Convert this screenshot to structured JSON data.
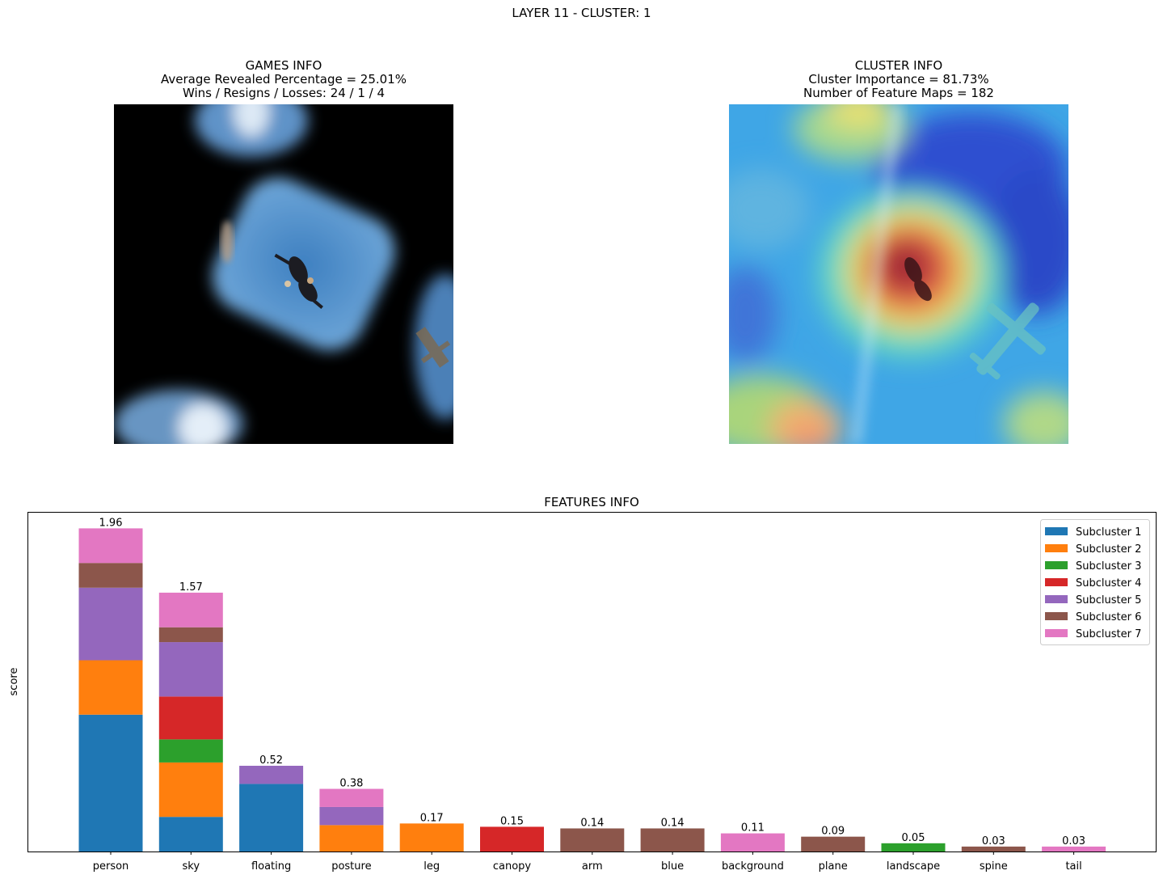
{
  "suptitle": "LAYER 11 - CLUSTER: 1",
  "games_info": {
    "title": "GAMES INFO",
    "line1": "Average Revealed Percentage = 25.01%",
    "line2": "Wins / Resigns / Losses: 24 / 1 / 4"
  },
  "cluster_info": {
    "title": "CLUSTER INFO",
    "line1": "Cluster Importance = 81.73%",
    "line2": "Number of Feature Maps = 182"
  },
  "images": {
    "left": "masked-skydiver-photo",
    "right": "heatmap-skydiver-photo"
  },
  "colors": {
    "Subcluster 1": "#1f77b4",
    "Subcluster 2": "#ff7f0e",
    "Subcluster 3": "#2ca02c",
    "Subcluster 4": "#d62728",
    "Subcluster 5": "#9467bd",
    "Subcluster 6": "#8c564b",
    "Subcluster 7": "#e377c2"
  },
  "chart_data": {
    "type": "bar",
    "stacked": true,
    "title": "FEATURES INFO",
    "xlabel": "",
    "ylabel": "score",
    "ylim": [
      0,
      2.06
    ],
    "yticks_shown": false,
    "legend_position": "top-right",
    "categories": [
      "person",
      "sky",
      "floating",
      "posture",
      "leg",
      "canopy",
      "arm",
      "blue",
      "background",
      "plane",
      "landscape",
      "spine",
      "tail"
    ],
    "totals": [
      1.96,
      1.57,
      0.52,
      0.38,
      0.17,
      0.15,
      0.14,
      0.14,
      0.11,
      0.09,
      0.05,
      0.03,
      0.03
    ],
    "total_labels": [
      "1.96",
      "1.57",
      "0.52",
      "0.38",
      "0.17",
      "0.15",
      "0.14",
      "0.14",
      "0.11",
      "0.09",
      "0.05",
      "0.03",
      "0.03"
    ],
    "series": [
      {
        "name": "Subcluster 1",
        "values": [
          0.83,
          0.21,
          0.41,
          0,
          0,
          0,
          0,
          0,
          0,
          0,
          0,
          0,
          0
        ]
      },
      {
        "name": "Subcluster 2",
        "values": [
          0.33,
          0.33,
          0,
          0.16,
          0.17,
          0,
          0,
          0,
          0,
          0,
          0,
          0,
          0
        ]
      },
      {
        "name": "Subcluster 3",
        "values": [
          0,
          0.14,
          0,
          0,
          0,
          0,
          0,
          0,
          0,
          0,
          0.05,
          0,
          0
        ]
      },
      {
        "name": "Subcluster 4",
        "values": [
          0,
          0.26,
          0,
          0,
          0,
          0.15,
          0,
          0,
          0,
          0,
          0,
          0,
          0
        ]
      },
      {
        "name": "Subcluster 5",
        "values": [
          0.44,
          0.33,
          0.11,
          0.11,
          0,
          0,
          0,
          0,
          0,
          0,
          0,
          0,
          0
        ]
      },
      {
        "name": "Subcluster 6",
        "values": [
          0.15,
          0.09,
          0,
          0,
          0,
          0,
          0.14,
          0.14,
          0,
          0.09,
          0,
          0.03,
          0
        ]
      },
      {
        "name": "Subcluster 7",
        "values": [
          0.21,
          0.21,
          0,
          0.11,
          0,
          0,
          0,
          0,
          0.11,
          0,
          0,
          0,
          0.03
        ]
      }
    ]
  }
}
